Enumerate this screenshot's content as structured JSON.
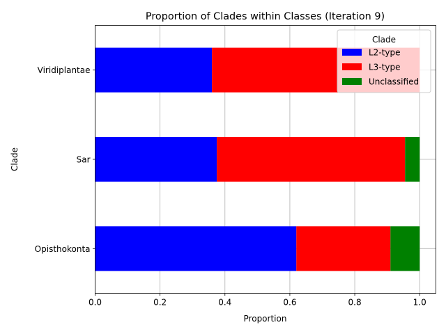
{
  "chart_data": {
    "type": "bar",
    "orientation": "horizontal",
    "stacked": true,
    "title": "Proportion of Clades within Classes (Iteration 9)",
    "xlabel": "Proportion",
    "ylabel": "Clade",
    "xlim": [
      0.0,
      1.05
    ],
    "xticks": [
      "0.0",
      "0.2",
      "0.4",
      "0.6",
      "0.8",
      "1.0"
    ],
    "grid": true,
    "categories": [
      "Opisthokonta",
      "Sar",
      "Viridiplantae"
    ],
    "series": [
      {
        "name": "L2-type",
        "color": "#0000ff",
        "values": [
          0.62,
          0.375,
          0.36
        ]
      },
      {
        "name": "L3-type",
        "color": "#ff0000",
        "values": [
          0.29,
          0.58,
          0.64
        ]
      },
      {
        "name": "Unclassified",
        "color": "#008000",
        "values": [
          0.09,
          0.045,
          0.0
        ]
      }
    ],
    "legend": {
      "title": "Clade",
      "position": "top-right"
    }
  }
}
